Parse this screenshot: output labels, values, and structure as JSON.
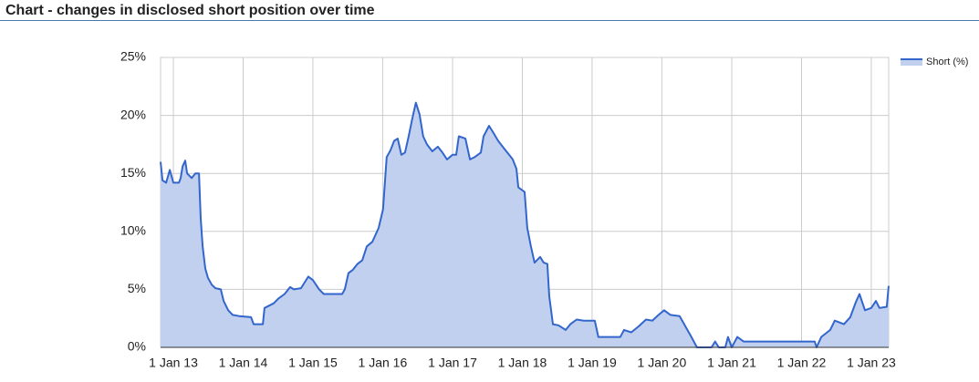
{
  "chart_data": {
    "type": "area",
    "title": "Chart - changes in disclosed short position over time",
    "x": [
      "2012-10-26",
      "2012-11-05",
      "2012-11-24",
      "2012-12-13",
      "2013-01-01",
      "2013-01-30",
      "2013-02-08",
      "2013-02-18",
      "2013-03-04",
      "2013-03-14",
      "2013-04-07",
      "2013-04-26",
      "2013-05-15",
      "2013-05-24",
      "2013-06-03",
      "2013-06-17",
      "2013-07-01",
      "2013-07-21",
      "2013-08-09",
      "2013-09-06",
      "2013-09-21",
      "2013-10-15",
      "2013-11-07",
      "2013-12-11",
      "2014-02-11",
      "2014-02-25",
      "2014-04-14",
      "2014-04-23",
      "2014-06-10",
      "2014-07-04",
      "2014-08-06",
      "2014-09-04",
      "2014-09-23",
      "2014-10-31",
      "2014-12-08",
      "2015-01-01",
      "2015-02-03",
      "2015-02-27",
      "2015-06-03",
      "2015-06-17",
      "2015-07-06",
      "2015-07-30",
      "2015-08-23",
      "2015-09-16",
      "2015-10-10",
      "2015-11-08",
      "2015-12-11",
      "2016-01-03",
      "2016-01-22",
      "2016-02-11",
      "2016-03-01",
      "2016-03-20",
      "2016-04-08",
      "2016-04-27",
      "2016-05-16",
      "2016-06-04",
      "2016-06-23",
      "2016-07-12",
      "2016-07-31",
      "2016-08-20",
      "2016-09-17",
      "2016-10-16",
      "2016-11-09",
      "2016-12-03",
      "2017-01-01",
      "2017-01-20",
      "2017-02-03",
      "2017-03-09",
      "2017-04-02",
      "2017-04-26",
      "2017-05-29",
      "2017-06-12",
      "2017-07-11",
      "2017-07-30",
      "2017-08-28",
      "2017-09-25",
      "2017-10-24",
      "2017-11-12",
      "2017-12-01",
      "2017-12-11",
      "2018-01-13",
      "2018-01-27",
      "2018-02-15",
      "2018-03-06",
      "2018-04-04",
      "2018-04-23",
      "2018-05-12",
      "2018-05-22",
      "2018-06-10",
      "2018-07-09",
      "2018-08-16",
      "2018-09-09",
      "2018-10-12",
      "2018-11-19",
      "2019-01-15",
      "2019-02-03",
      "2019-05-29",
      "2019-06-17",
      "2019-07-25",
      "2019-09-01",
      "2019-10-10",
      "2019-11-12",
      "2019-12-15",
      "2020-01-13",
      "2020-02-15",
      "2020-04-03",
      "2020-05-07",
      "2020-06-04",
      "2020-07-03",
      "2020-09-17",
      "2020-10-06",
      "2020-10-25",
      "2020-11-28",
      "2020-12-12",
      "2021-01-01",
      "2021-01-30",
      "2021-03-04",
      "2021-08-09",
      "2021-09-26",
      "2022-03-11",
      "2022-03-21",
      "2022-04-14",
      "2022-05-31",
      "2022-06-24",
      "2022-08-11",
      "2022-09-13",
      "2022-10-12",
      "2022-10-31",
      "2022-11-29",
      "2023-01-01",
      "2023-01-25",
      "2023-02-13",
      "2023-03-23",
      "2023-04-02"
    ],
    "series": [
      {
        "name": "Short (%)",
        "color": "#3366cc",
        "fill": "#c1d0ef",
        "values": [
          16.0,
          14.4,
          14.2,
          15.3,
          14.2,
          14.2,
          14.6,
          15.6,
          16.1,
          15.0,
          14.6,
          15.0,
          15.0,
          11.1,
          8.7,
          6.8,
          6.0,
          5.4,
          5.1,
          5.0,
          4.0,
          3.2,
          2.8,
          2.7,
          2.6,
          2.0,
          2.0,
          3.4,
          3.8,
          4.2,
          4.6,
          5.2,
          5.0,
          5.1,
          6.1,
          5.8,
          5.0,
          4.6,
          4.6,
          5.0,
          6.4,
          6.7,
          7.2,
          7.5,
          8.7,
          9.1,
          10.3,
          11.9,
          16.4,
          17.0,
          17.8,
          18.0,
          16.6,
          16.8,
          18.2,
          19.7,
          21.1,
          20.1,
          18.2,
          17.5,
          16.9,
          17.3,
          16.8,
          16.2,
          16.6,
          16.6,
          18.2,
          18.0,
          16.2,
          16.4,
          16.8,
          18.2,
          19.1,
          18.6,
          17.8,
          17.2,
          16.6,
          16.2,
          15.4,
          13.8,
          13.4,
          10.3,
          8.7,
          7.3,
          7.8,
          7.3,
          7.2,
          4.4,
          2.0,
          1.9,
          1.5,
          2.0,
          2.4,
          2.3,
          2.3,
          0.9,
          0.9,
          1.5,
          1.3,
          1.8,
          2.4,
          2.3,
          2.8,
          3.2,
          2.8,
          2.7,
          1.7,
          0.9,
          0,
          0,
          0.5,
          0,
          0,
          0.9,
          0,
          0.9,
          0.5,
          0.5,
          0.5,
          0.5,
          0,
          0.9,
          1.5,
          2.3,
          2.0,
          2.6,
          3.9,
          4.6,
          3.2,
          3.4,
          4.0,
          3.4,
          3.5,
          5.3
        ]
      }
    ],
    "xlim": [
      "2012-10-26",
      "2023-04-02"
    ],
    "xticks": [
      {
        "value": "2013-01-01",
        "label": "1 Jan 13"
      },
      {
        "value": "2014-01-01",
        "label": "1 Jan 14"
      },
      {
        "value": "2015-01-01",
        "label": "1 Jan 15"
      },
      {
        "value": "2016-01-01",
        "label": "1 Jan 16"
      },
      {
        "value": "2017-01-01",
        "label": "1 Jan 17"
      },
      {
        "value": "2018-01-01",
        "label": "1 Jan 18"
      },
      {
        "value": "2019-01-01",
        "label": "1 Jan 19"
      },
      {
        "value": "2020-01-01",
        "label": "1 Jan 20"
      },
      {
        "value": "2021-01-01",
        "label": "1 Jan 21"
      },
      {
        "value": "2022-01-01",
        "label": "1 Jan 22"
      },
      {
        "value": "2023-01-01",
        "label": "1 Jan 23"
      }
    ],
    "ylim": [
      0,
      25
    ],
    "yticks": [
      {
        "value": 0,
        "label": "0%"
      },
      {
        "value": 5,
        "label": "5%"
      },
      {
        "value": 10,
        "label": "10%"
      },
      {
        "value": 15,
        "label": "15%"
      },
      {
        "value": 20,
        "label": "20%"
      },
      {
        "value": 25,
        "label": "25%"
      }
    ],
    "grid": true,
    "legend": "right"
  }
}
